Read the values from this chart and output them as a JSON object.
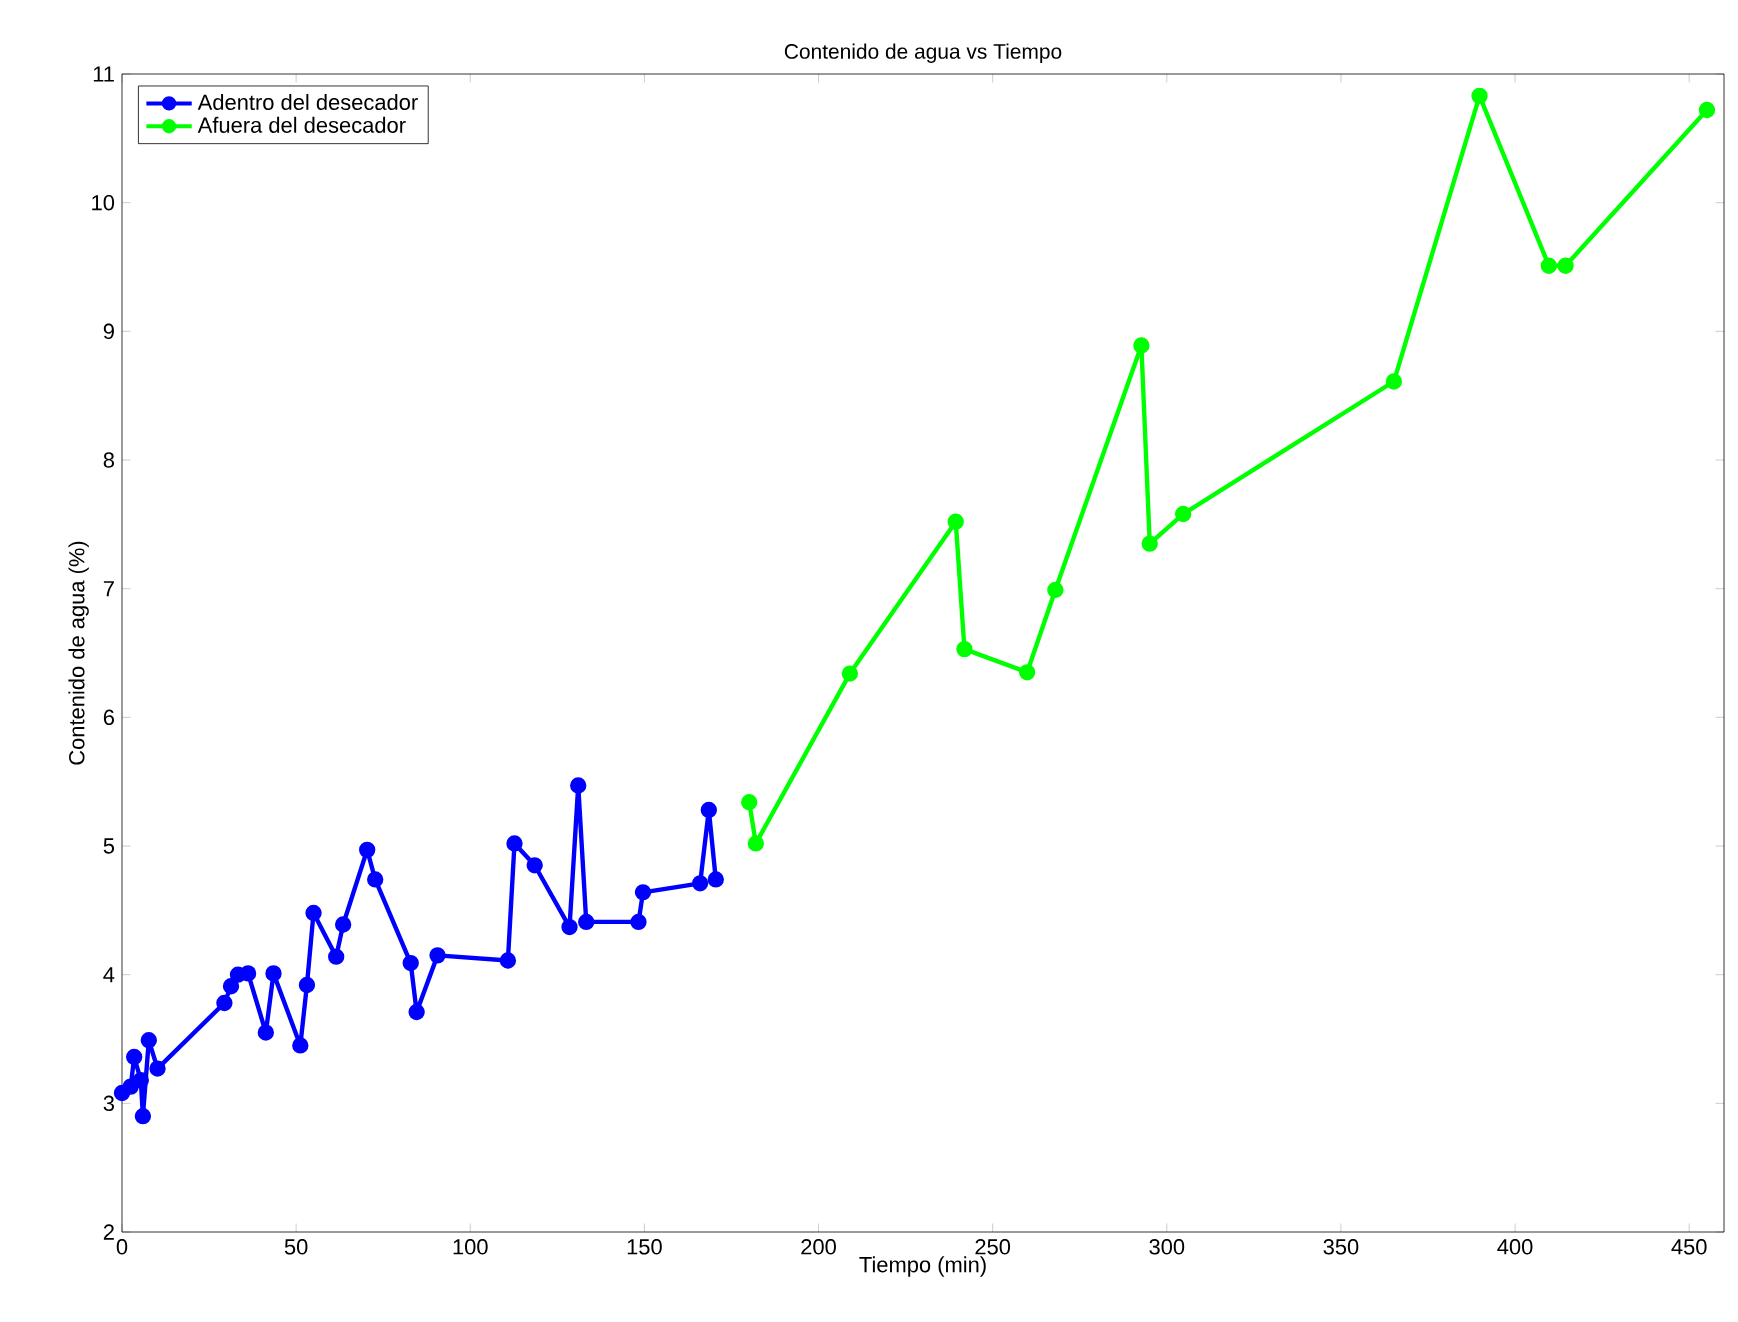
{
  "chart_data": {
    "type": "line",
    "title": "Contenido de agua vs Tiempo",
    "xlabel": "Tiempo (min)",
    "ylabel": "Contenido de agua (%)",
    "xlim": [
      0,
      460
    ],
    "ylim": [
      2,
      11
    ],
    "xticks": [
      0,
      50,
      100,
      150,
      200,
      250,
      300,
      350,
      400,
      450
    ],
    "yticks": [
      2,
      3,
      4,
      5,
      6,
      7,
      8,
      9,
      10,
      11
    ],
    "grid": false,
    "legend": "top left",
    "marker": "circle",
    "line_style": "solid",
    "series": [
      {
        "name": "Adentro del desecador",
        "color": "#0000ff",
        "x": [
          0,
          2.5,
          3.5,
          5.4,
          6,
          7.7,
          10.2,
          29.4,
          31.3,
          33.3,
          36.2,
          41.3,
          43.5,
          51.2,
          53.1,
          55,
          61.5,
          63.5,
          70.4,
          72.7,
          82.9,
          84.6,
          90.6,
          110.8,
          112.7,
          118.5,
          128.5,
          131,
          133.3,
          148.3,
          149.6,
          166,
          168.5,
          170.5
        ],
        "values": [
          3.08,
          3.13,
          3.36,
          3.18,
          2.9,
          3.49,
          3.27,
          3.78,
          3.91,
          4.0,
          4.01,
          3.55,
          4.01,
          3.45,
          3.92,
          4.48,
          4.14,
          4.39,
          4.97,
          4.74,
          4.09,
          3.71,
          4.15,
          4.11,
          5.02,
          4.85,
          4.37,
          5.47,
          4.41,
          4.41,
          4.64,
          4.71,
          5.28,
          4.74
        ]
      },
      {
        "name": "Afuera del desecador",
        "color": "#00ff00",
        "x": [
          180.1,
          182,
          209,
          239.4,
          241.9,
          259.9,
          268,
          292.7,
          295.1,
          304.7,
          365.2,
          389.8,
          409.7,
          414.5,
          455.1
        ],
        "values": [
          5.34,
          5.02,
          6.34,
          7.52,
          6.53,
          6.35,
          6.99,
          8.89,
          7.35,
          7.58,
          8.61,
          10.83,
          9.51,
          9.51,
          10.72
        ]
      }
    ]
  }
}
